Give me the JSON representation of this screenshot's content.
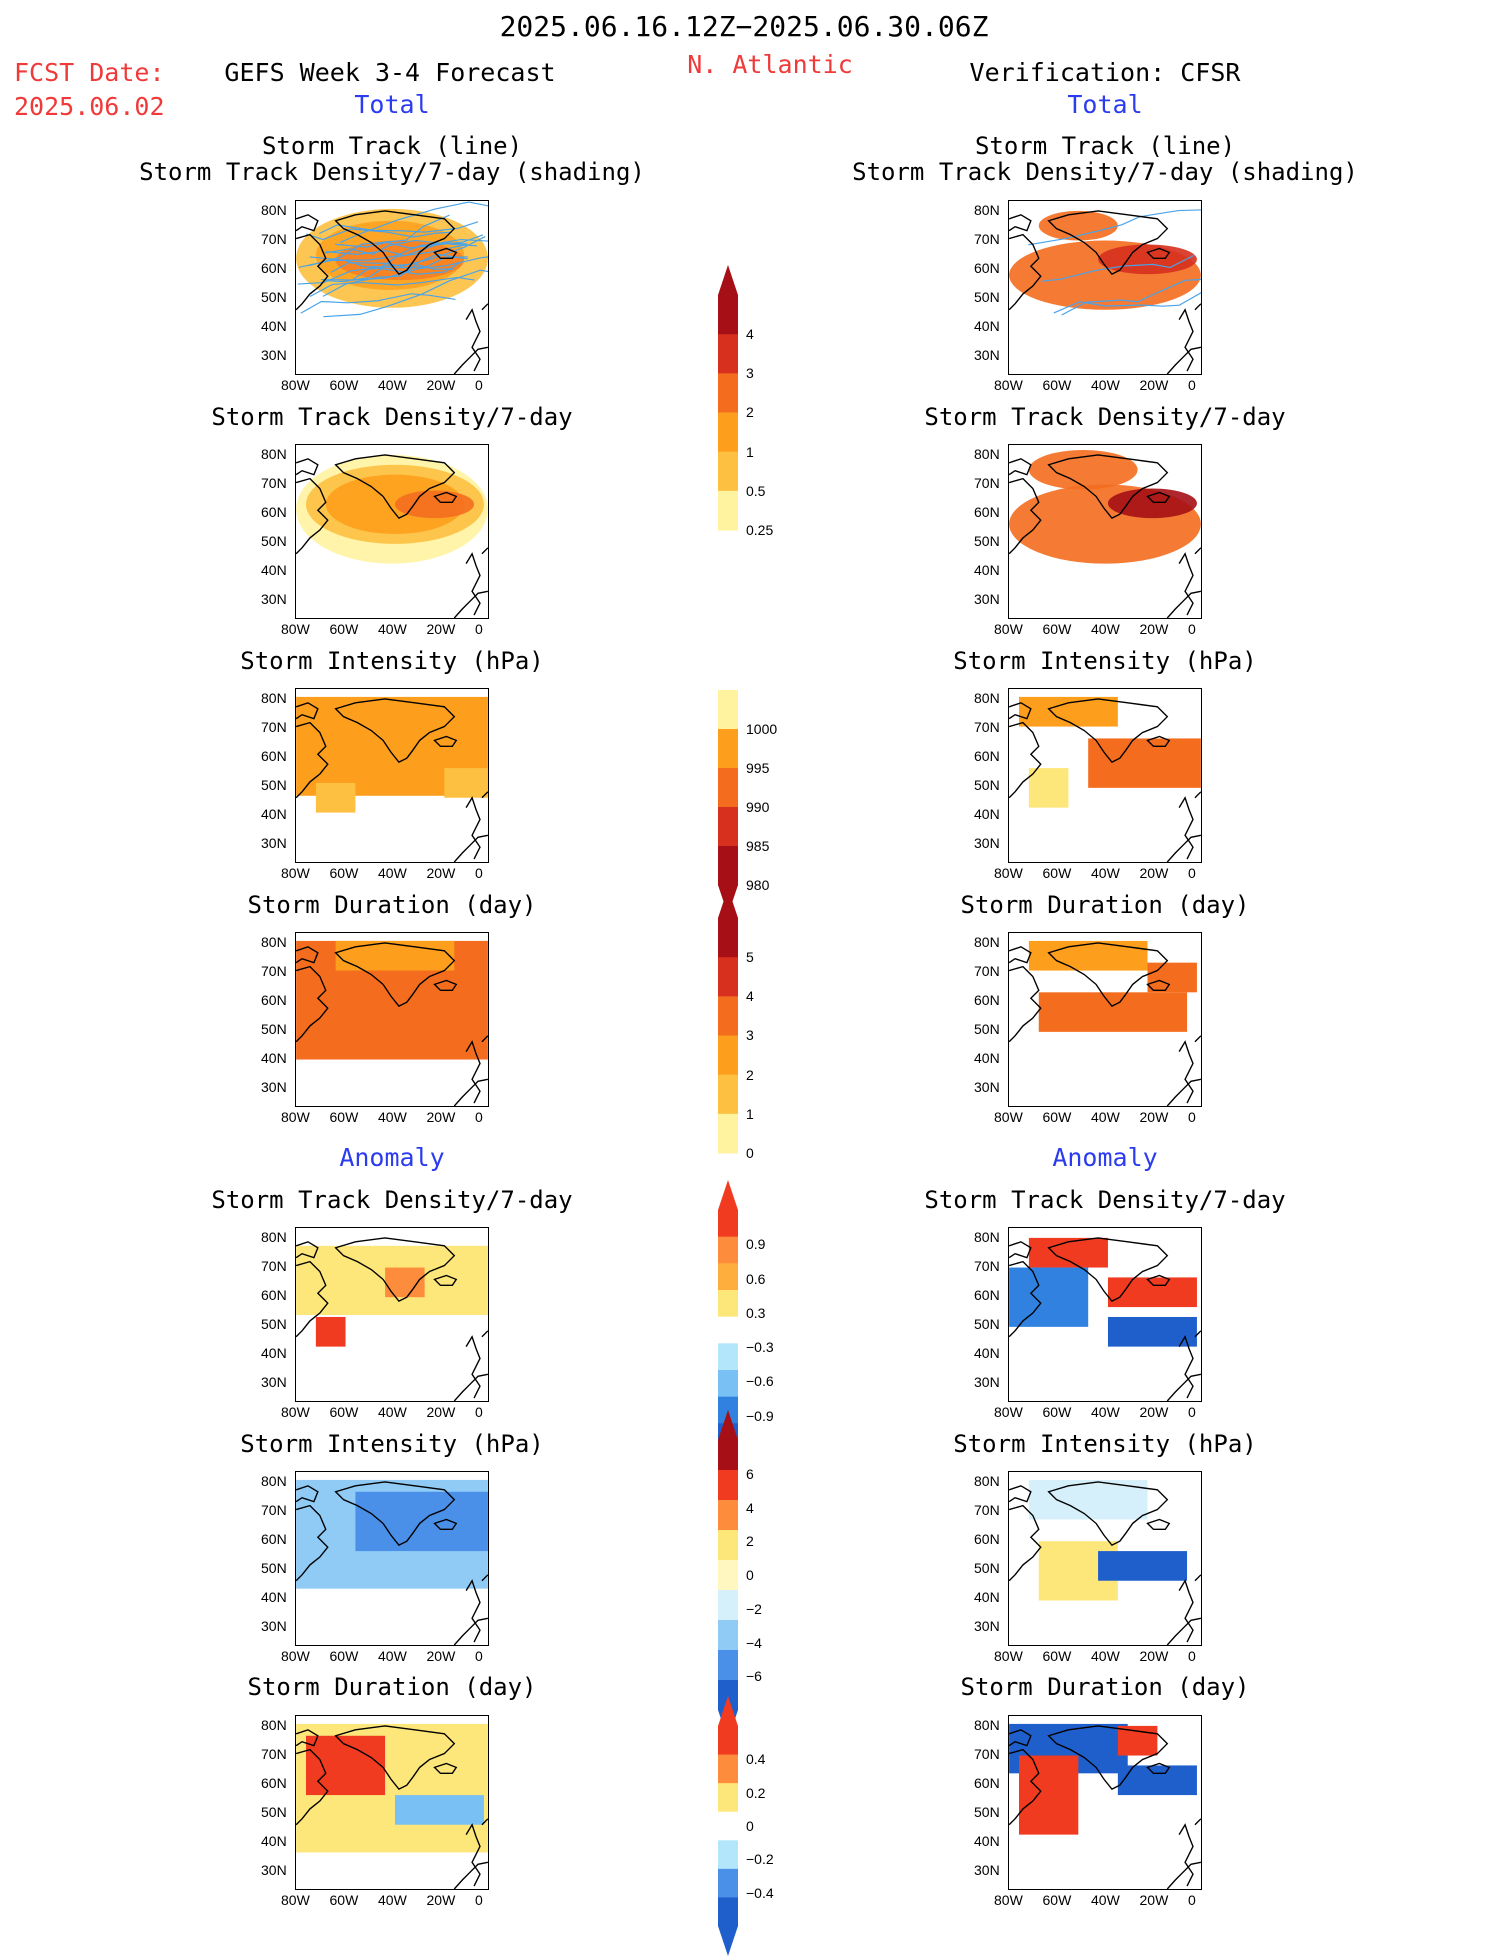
{
  "header": {
    "period": "2025.06.16.12Z−2025.06.30.06Z",
    "fcst_label": "FCST Date:",
    "fcst_date": "2025.06.02",
    "forecast_title": "GEFS Week 3-4 Forecast",
    "region": "N. Atlantic",
    "verification": "Verification: CFSR",
    "total_left": "Total",
    "total_right": "Total",
    "anomaly_left": "Anomaly",
    "anomaly_right": "Anomaly"
  },
  "titles": {
    "track_line": "Storm Track (line)",
    "track_shading": "Storm Track Density/7-day (shading)",
    "density": "Storm Track Density/7-day",
    "intensity": "Storm Intensity (hPa)",
    "duration": "Storm Duration (day)"
  },
  "axes": {
    "lat_labels": [
      "80N",
      "70N",
      "60N",
      "50N",
      "40N",
      "30N"
    ],
    "lon_labels": [
      "80W",
      "60W",
      "40W",
      "20W",
      "0"
    ]
  },
  "colorbars": {
    "density": {
      "labels": [
        "4",
        "3",
        "2",
        "1",
        "0.5",
        "0.25"
      ],
      "colors": [
        "#a50f15",
        "#d7301f",
        "#f46d1f",
        "#fd9e1c",
        "#fdc040",
        "#fff3a0"
      ]
    },
    "intensity": {
      "labels": [
        "1000",
        "995",
        "990",
        "985",
        "980"
      ],
      "colors": [
        "#fff3a0",
        "#fd9e1c",
        "#f46d1f",
        "#d7301f",
        "#a50f15"
      ]
    },
    "duration": {
      "labels": [
        "5",
        "4",
        "3",
        "2",
        "1",
        "0"
      ],
      "colors": [
        "#a50f15",
        "#d7301f",
        "#f46d1f",
        "#fd9e1c",
        "#fdc040",
        "#fff3a0"
      ]
    },
    "density_anom": {
      "labels": [
        "0.9",
        "0.6",
        "0.3",
        "−0.3",
        "−0.6",
        "−0.9"
      ],
      "colors": [
        "#f03b20",
        "#fd8d3c",
        "#fdae3c",
        "#fee77a",
        "#ffffff",
        "#b3e6fb",
        "#79c0f5",
        "#3182e0",
        "#1f5fcc"
      ]
    },
    "intensity_anom": {
      "labels": [
        "6",
        "4",
        "2",
        "0",
        "−2",
        "−4",
        "−6"
      ],
      "colors": [
        "#a50f15",
        "#f03b20",
        "#fd8d3c",
        "#fee77a",
        "#fff6c0",
        "#d6f0fb",
        "#8fcbf5",
        "#4a8fe8",
        "#1f5fcc"
      ]
    },
    "duration_anom": {
      "labels": [
        "0.4",
        "0.2",
        "0",
        "−0.2",
        "−0.4"
      ],
      "colors": [
        "#f03b20",
        "#fd8d3c",
        "#fee77a",
        "#ffffff",
        "#b3e6fb",
        "#4a8fe8",
        "#1f5fcc"
      ]
    }
  }
}
